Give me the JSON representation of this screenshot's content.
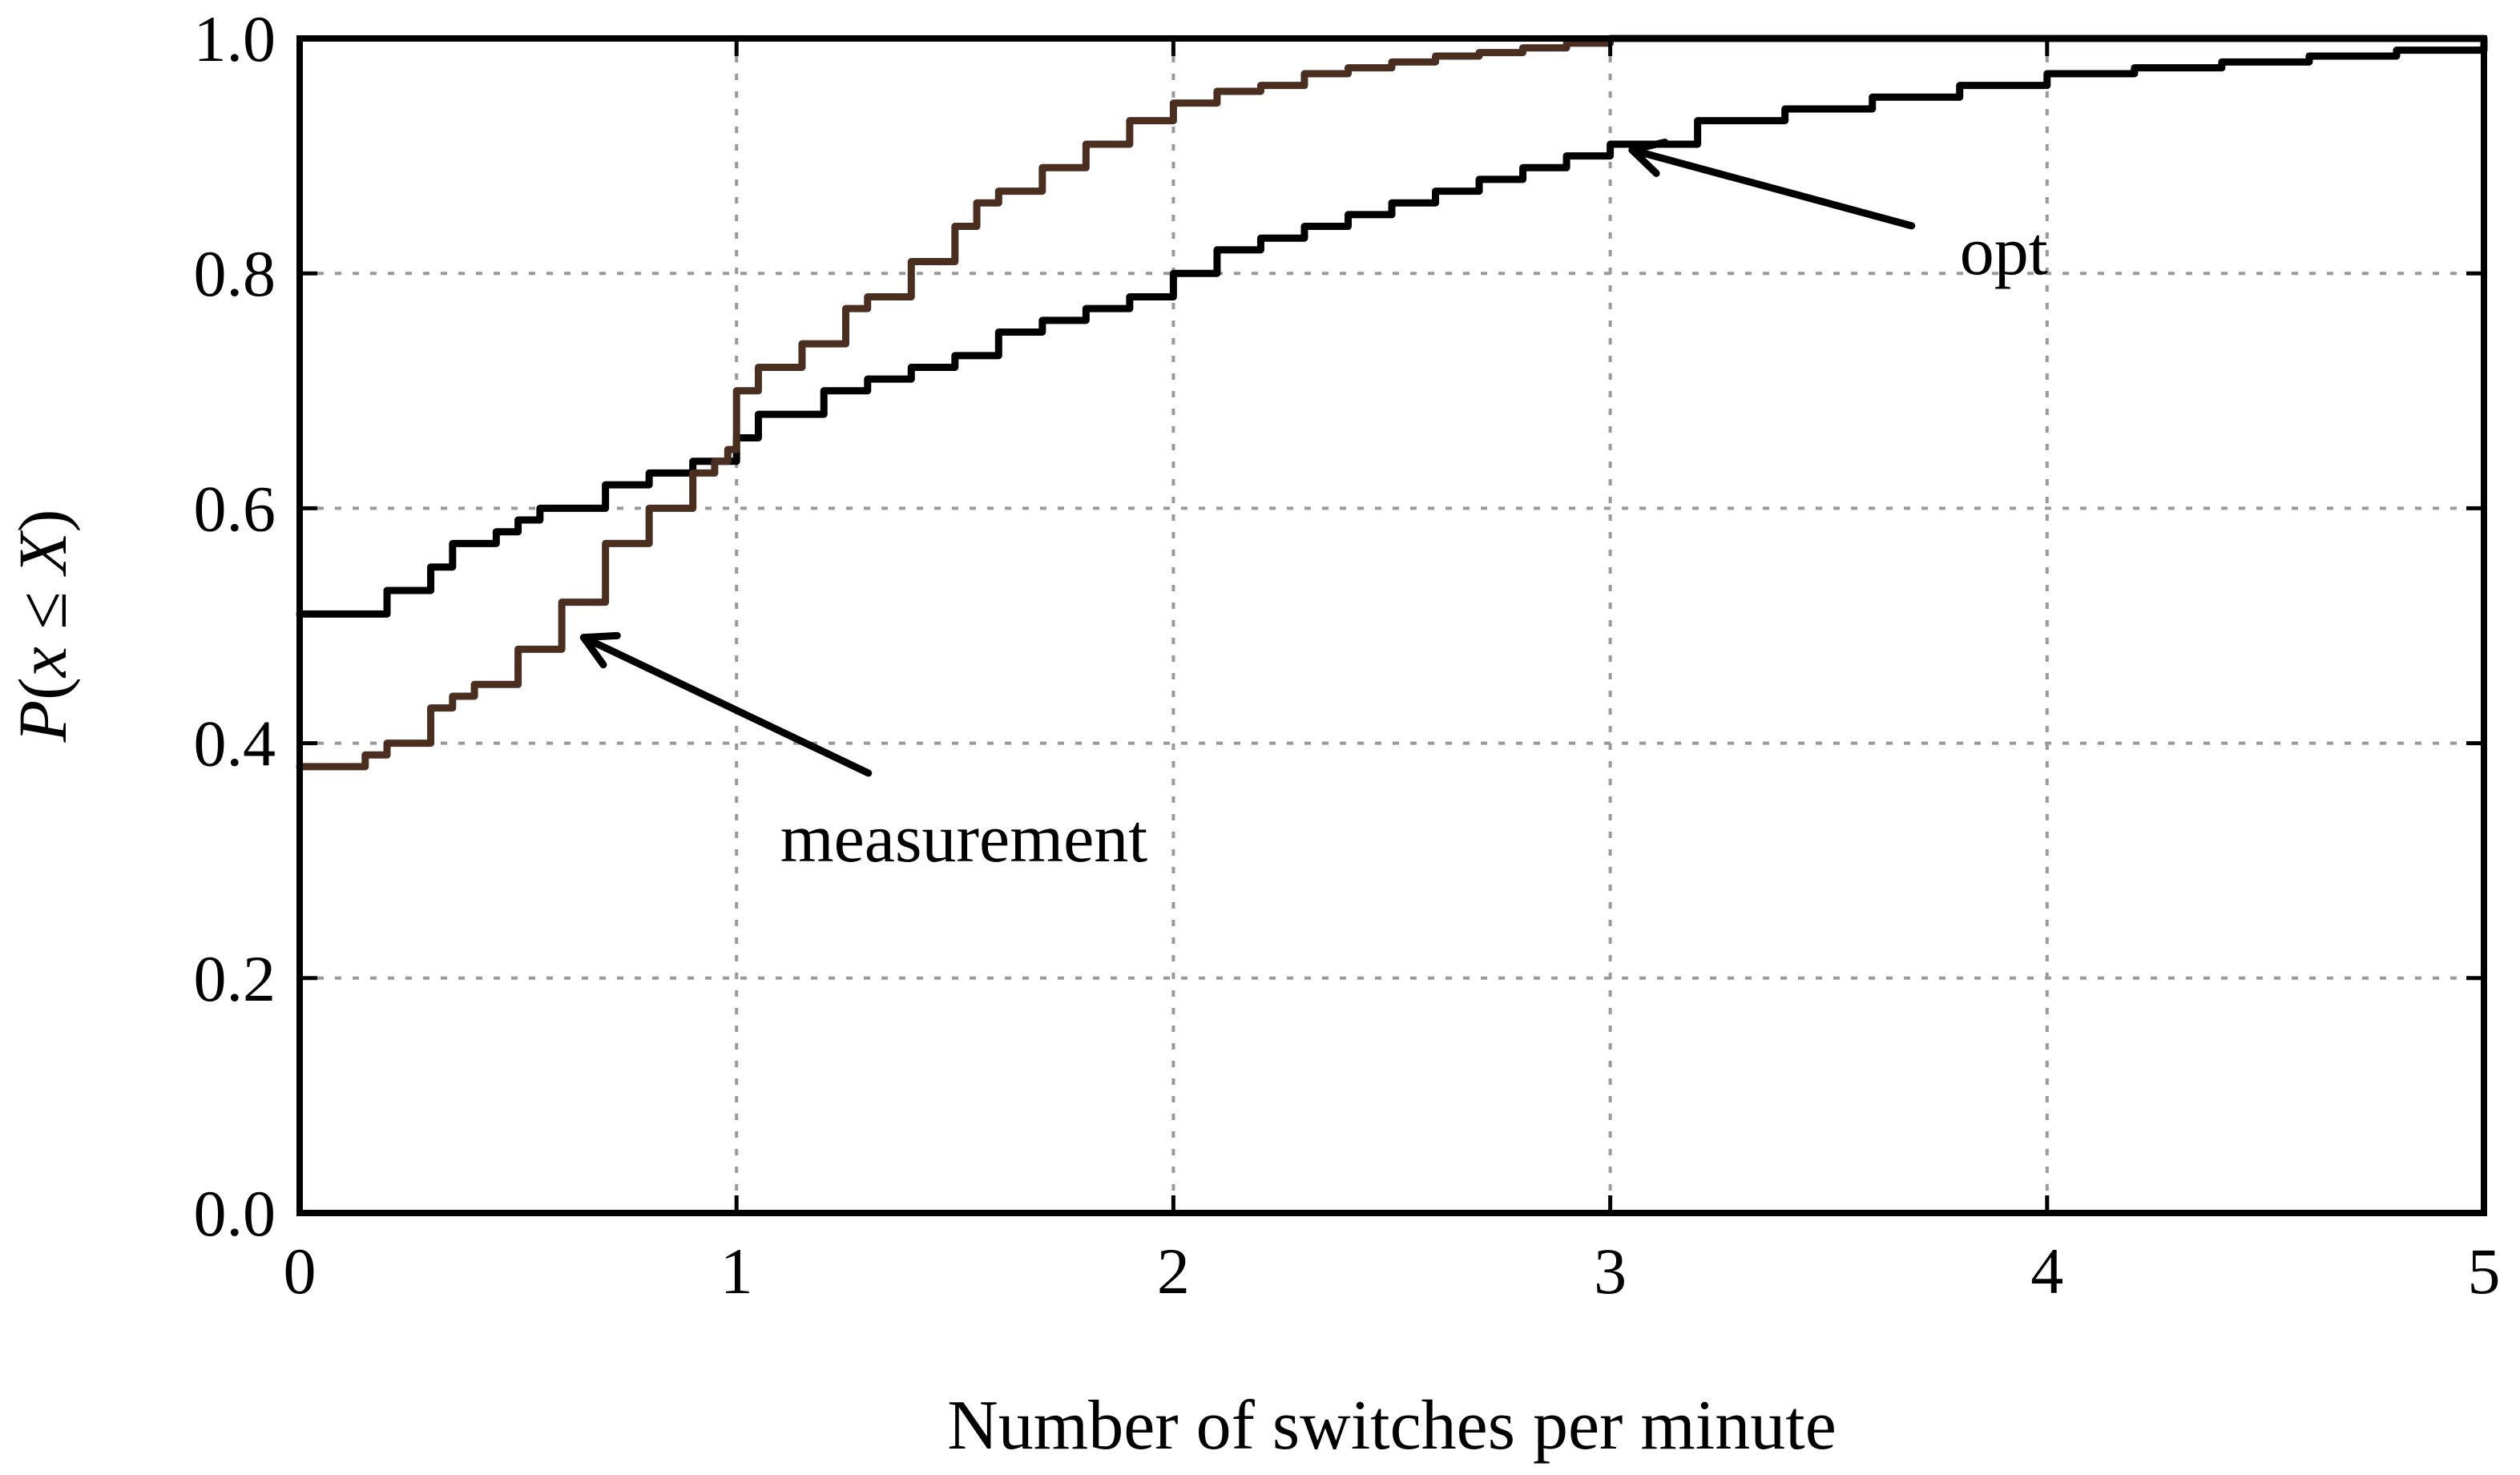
{
  "chart_data": {
    "type": "line",
    "xlabel": "Number of switches per minute",
    "ylabel": {
      "p": "P",
      "open": "(",
      "x": "x",
      "le": " ≤ ",
      "X": "X",
      "close": ")"
    },
    "xlim": [
      0,
      5
    ],
    "ylim": [
      0,
      1
    ],
    "xticks": [
      "0",
      "1",
      "2",
      "3",
      "4",
      "5"
    ],
    "yticks": [
      "0.0",
      "0.2",
      "0.4",
      "0.6",
      "0.8",
      "1.0"
    ],
    "grid": true,
    "series": [
      {
        "name": "opt",
        "color": "#000000",
        "x": [
          0,
          0.12,
          0.2,
          0.3,
          0.35,
          0.45,
          0.5,
          0.55,
          0.7,
          0.8,
          0.9,
          1.0,
          1.05,
          1.2,
          1.3,
          1.4,
          1.5,
          1.6,
          1.7,
          1.8,
          1.9,
          2.0,
          2.1,
          2.2,
          2.3,
          2.4,
          2.5,
          2.6,
          2.7,
          2.8,
          2.9,
          3.0,
          3.2,
          3.4,
          3.6,
          3.8,
          4.0,
          4.2,
          4.4,
          4.6,
          4.8,
          5.0
        ],
        "y": [
          0.51,
          0.51,
          0.53,
          0.55,
          0.57,
          0.58,
          0.59,
          0.6,
          0.62,
          0.63,
          0.64,
          0.66,
          0.68,
          0.7,
          0.71,
          0.72,
          0.73,
          0.75,
          0.76,
          0.77,
          0.78,
          0.8,
          0.82,
          0.83,
          0.84,
          0.85,
          0.86,
          0.87,
          0.88,
          0.89,
          0.9,
          0.91,
          0.93,
          0.94,
          0.95,
          0.96,
          0.97,
          0.975,
          0.98,
          0.985,
          0.99,
          1.0
        ]
      },
      {
        "name": "measurement",
        "color": "#4a2e20",
        "x": [
          0,
          0.1,
          0.15,
          0.2,
          0.3,
          0.35,
          0.4,
          0.5,
          0.6,
          0.7,
          0.8,
          0.9,
          0.95,
          0.98,
          1.0,
          1.05,
          1.15,
          1.25,
          1.3,
          1.4,
          1.5,
          1.55,
          1.6,
          1.7,
          1.8,
          1.9,
          2.0,
          2.1,
          2.2,
          2.3,
          2.4,
          2.5,
          2.6,
          2.7,
          2.8,
          2.9,
          3.0,
          5.0
        ],
        "y": [
          0.38,
          0.38,
          0.39,
          0.4,
          0.43,
          0.44,
          0.45,
          0.48,
          0.52,
          0.57,
          0.6,
          0.63,
          0.64,
          0.65,
          0.7,
          0.72,
          0.74,
          0.77,
          0.78,
          0.81,
          0.84,
          0.86,
          0.87,
          0.89,
          0.91,
          0.93,
          0.945,
          0.955,
          0.96,
          0.97,
          0.975,
          0.98,
          0.985,
          0.988,
          0.992,
          0.996,
          1.0,
          1.0
        ]
      }
    ],
    "annotations": [
      {
        "text": "opt",
        "series": "opt",
        "arrow_to": [
          3.05,
          0.905
        ],
        "text_at": [
          3.8,
          0.82
        ]
      },
      {
        "text": "measurement",
        "series": "measurement",
        "arrow_to": [
          0.65,
          0.49
        ],
        "text_at": [
          1.1,
          0.32
        ]
      }
    ]
  }
}
